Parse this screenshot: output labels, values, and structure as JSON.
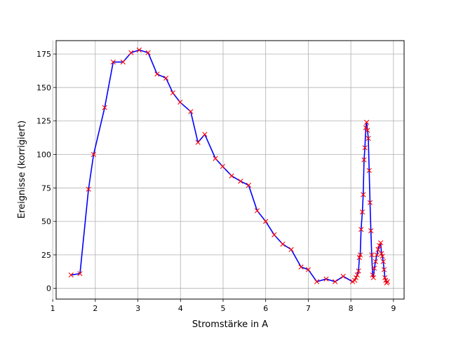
{
  "chart_data": {
    "type": "line",
    "title": "",
    "xlabel": "Stromstärke in A",
    "ylabel": "Ereignisse (korrigiert)",
    "xlim": [
      1.08,
      9.25
    ],
    "ylim": [
      -8,
      185
    ],
    "xticks": [
      1,
      2,
      3,
      4,
      5,
      6,
      7,
      8,
      9
    ],
    "yticks": [
      0,
      25,
      50,
      75,
      100,
      125,
      150,
      175
    ],
    "grid": true,
    "line_color": "#0000ff",
    "marker_color": "#ff0000",
    "marker": "x",
    "series": [
      {
        "x": [
          1.43,
          1.64,
          1.84,
          1.96,
          2.22,
          2.42,
          2.65,
          2.84,
          3.03,
          3.24,
          3.45,
          3.66,
          3.82,
          3.99,
          4.24,
          4.41,
          4.57,
          4.82,
          4.99,
          5.2,
          5.41,
          5.6,
          5.8,
          6.0,
          6.2,
          6.4,
          6.6,
          6.83,
          7.0,
          7.2,
          7.42,
          7.63,
          7.82,
          8.04,
          8.09,
          8.12,
          8.15,
          8.18,
          8.2,
          8.22,
          8.24,
          8.27,
          8.29,
          8.31,
          8.33,
          8.35,
          8.37,
          8.39,
          8.41,
          8.43,
          8.45,
          8.47,
          8.49,
          8.51,
          8.53,
          8.55,
          8.58,
          8.61,
          8.64,
          8.67,
          8.7,
          8.72,
          8.74,
          8.76,
          8.78,
          8.8,
          8.82,
          8.84,
          8.86
        ],
        "y": [
          10,
          11,
          74,
          100,
          135,
          169,
          169,
          176,
          178,
          176,
          160,
          157,
          146,
          139,
          132,
          109,
          115,
          97,
          91,
          84,
          80,
          77,
          58,
          50,
          40,
          33,
          29,
          16,
          14,
          5,
          7,
          5,
          9,
          5,
          6,
          8,
          10,
          13,
          23,
          25,
          44,
          57,
          70,
          96,
          105,
          120,
          124,
          118,
          112,
          88,
          64,
          43,
          25,
          10,
          8,
          15,
          20,
          25,
          29,
          32,
          34,
          26,
          24,
          20,
          14,
          8,
          6,
          4,
          5
        ]
      }
    ]
  }
}
